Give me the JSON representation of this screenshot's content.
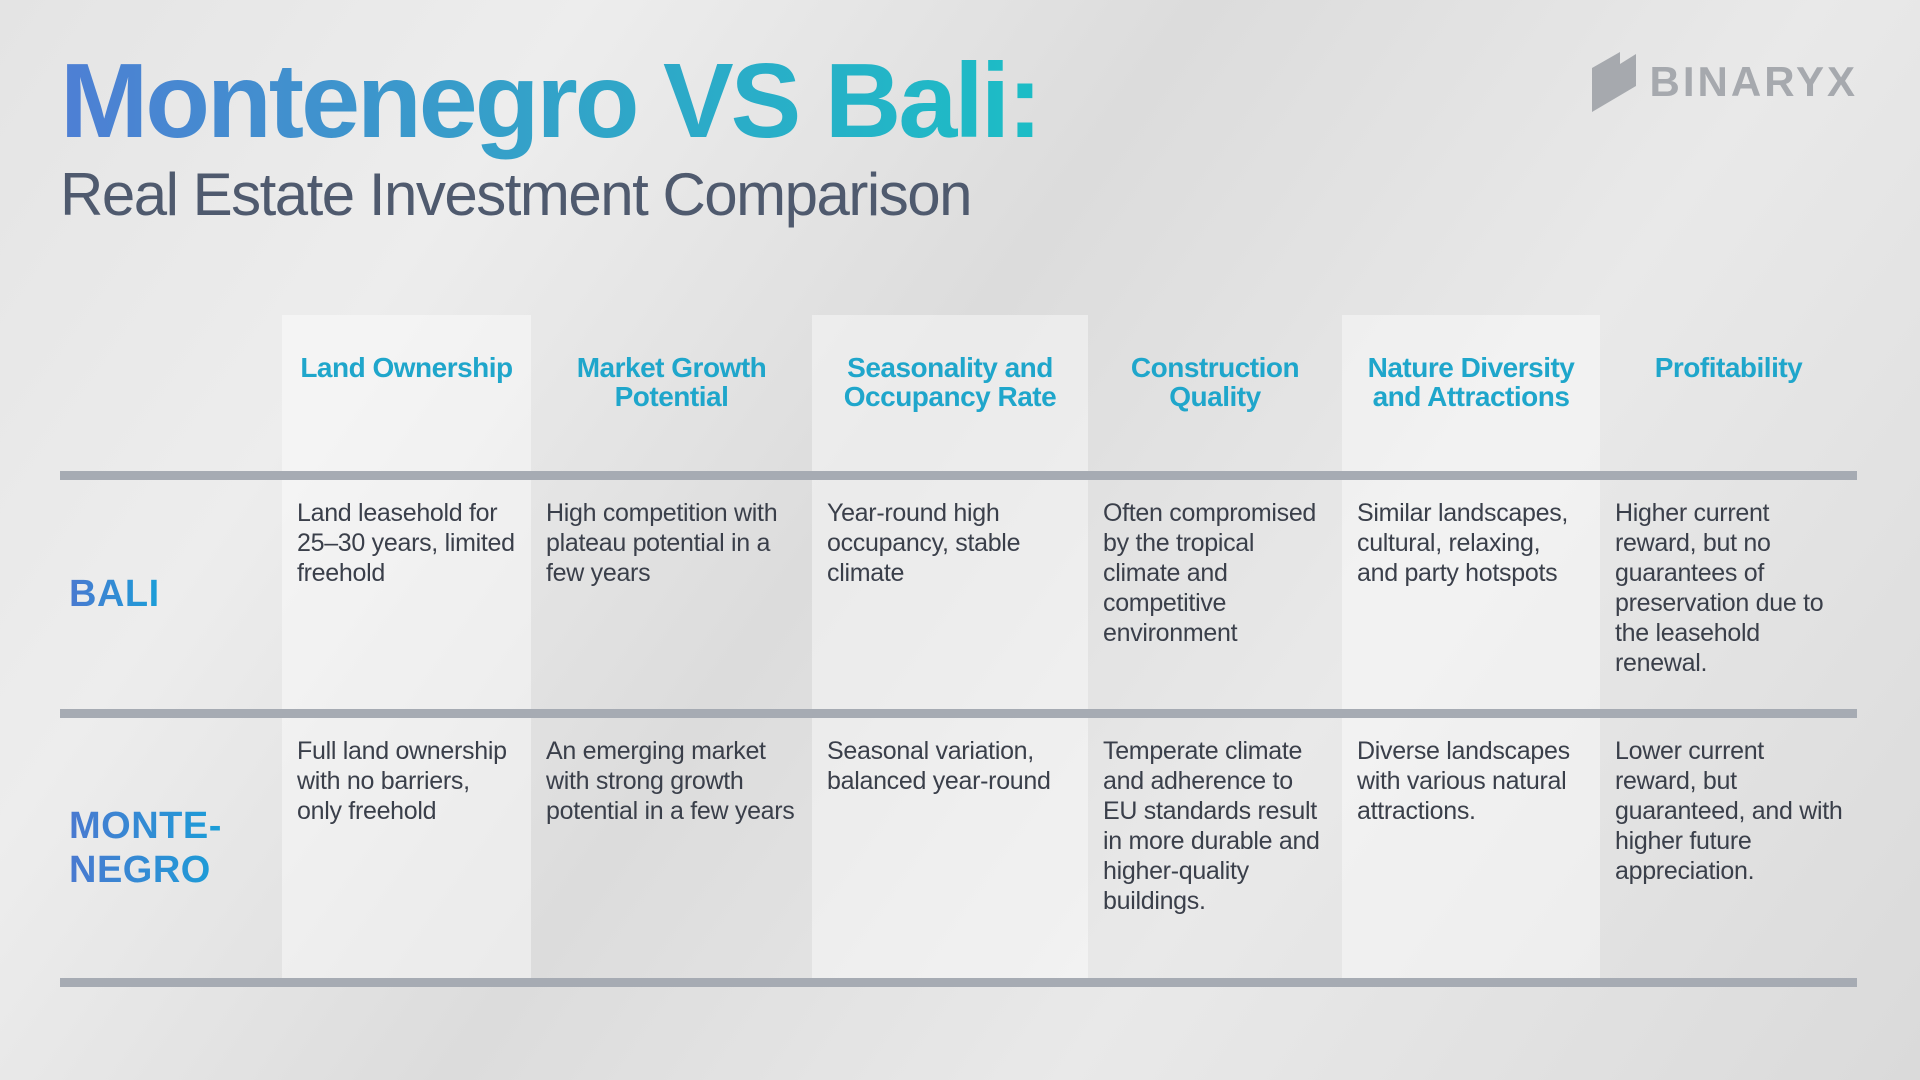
{
  "title": "Montenegro VS Bali:",
  "subtitle": "Real Estate Investment Comparison",
  "brand": {
    "name": "BINARYX",
    "icon": "binaryx-logo-icon",
    "color": "#a6a9ae"
  },
  "colors": {
    "title_gradient_start": "#4e7fd4",
    "title_gradient_end": "#1cbdc6",
    "header_text": "#1fa6cb",
    "body_text": "#3a3f4a",
    "subtitle_text": "#4f5a6e",
    "divider": "#a6abb3"
  },
  "table": {
    "columns": [
      "Land Ownership",
      "Market Growth Potential",
      "Seasonality and Occupancy Rate",
      "Construction Quality",
      "Nature Diversity and Attractions",
      "Profitability"
    ],
    "rows": [
      {
        "label": "BALI",
        "cells": [
          "Land leasehold for 25–30 years, limited freehold",
          "High competition with plateau potential in a few years",
          "Year-round high occupancy, stable climate",
          "Often compromised by the tropical climate and competitive environment",
          "Similar landscapes, cultural, relaxing, and party hotspots",
          "Higher current reward, but no guarantees of preservation due to the leasehold renewal."
        ]
      },
      {
        "label_line1": "MONTE-",
        "label_line2": "NEGRO",
        "cells": [
          "Full land ownership with no barriers, only freehold",
          "An emerging market with strong growth potential in a few years",
          "Seasonal variation, balanced year-round",
          "Temperate climate and adherence to EU standards result in more durable and higher-quality buildings.",
          "Diverse landscapes with various natural attractions.",
          "Lower current reward, but guaranteed, and with higher future appreciation."
        ]
      }
    ]
  }
}
